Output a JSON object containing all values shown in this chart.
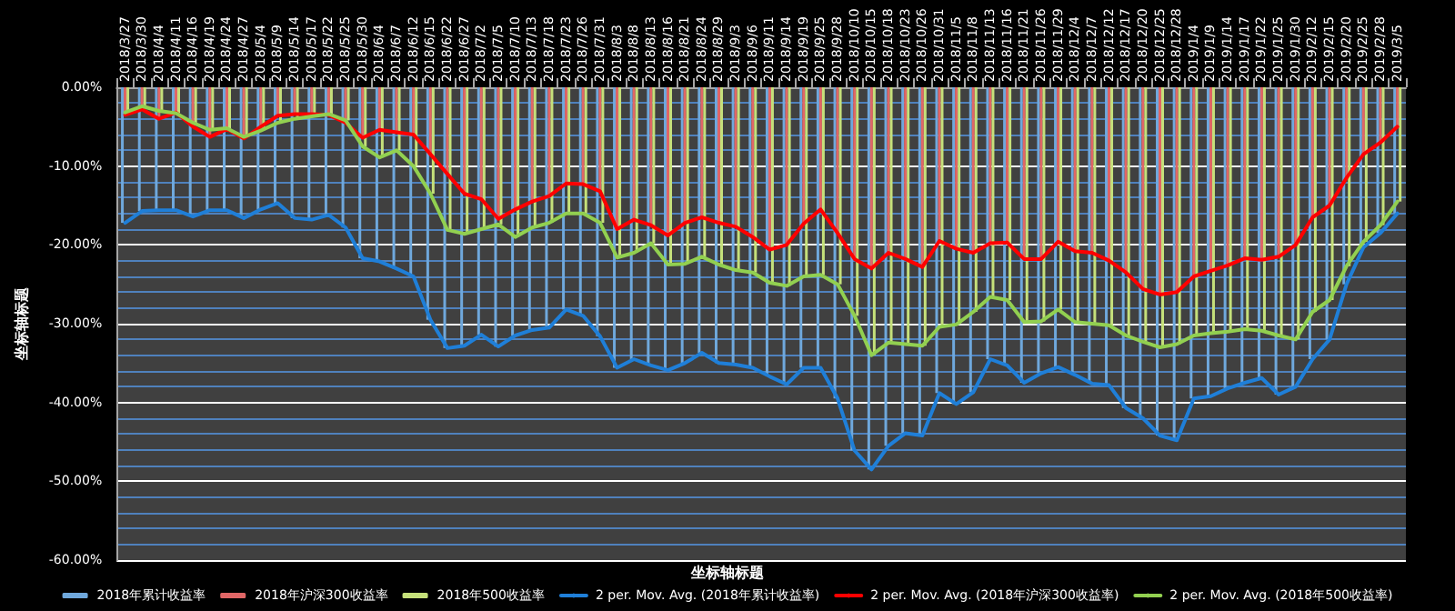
{
  "chart_data": {
    "type": "line",
    "xlabel": "坐标轴标题",
    "ylabel": "坐标轴标题",
    "categories": [
      "2018/3/27",
      "2018/3/30",
      "2018/4/4",
      "2018/4/11",
      "2018/4/16",
      "2018/4/19",
      "2018/4/24",
      "2018/4/27",
      "2018/5/4",
      "2018/5/9",
      "2018/5/14",
      "2018/5/17",
      "2018/5/22",
      "2018/5/25",
      "2018/5/30",
      "2018/6/4",
      "2018/6/7",
      "2018/6/12",
      "2018/6/15",
      "2018/6/22",
      "2018/6/27",
      "2018/7/2",
      "2018/7/5",
      "2018/7/10",
      "2018/7/13",
      "2018/7/18",
      "2018/7/23",
      "2018/7/26",
      "2018/7/31",
      "2018/8/3",
      "2018/8/8",
      "2018/8/13",
      "2018/8/16",
      "2018/8/21",
      "2018/8/24",
      "2018/8/29",
      "2018/9/3",
      "2018/9/6",
      "2018/9/11",
      "2018/9/14",
      "2018/9/19",
      "2018/9/25",
      "2018/9/28",
      "2018/10/10",
      "2018/10/15",
      "2018/10/18",
      "2018/10/23",
      "2018/10/26",
      "2018/10/31",
      "2018/11/5",
      "2018/11/8",
      "2018/11/13",
      "2018/11/16",
      "2018/11/21",
      "2018/11/26",
      "2018/11/29",
      "2018/12/4",
      "2018/12/7",
      "2018/12/12",
      "2018/12/17",
      "2018/12/20",
      "2018/12/25",
      "2018/12/28",
      "2019/1/4",
      "2019/1/9",
      "2019/1/14",
      "2019/1/17",
      "2019/1/22",
      "2019/1/25",
      "2019/1/30",
      "2019/2/12",
      "2019/2/15",
      "2019/2/20",
      "2019/2/25",
      "2019/2/28",
      "2019/3/5"
    ],
    "series": [
      {
        "name": "2018年累计收益率",
        "type": "bar",
        "color": "#6fa8dc",
        "values": [
          -17.2,
          -15.7,
          -15.6,
          -15.6,
          -16.4,
          -15.6,
          -15.6,
          -16.6,
          -15.5,
          -14.7,
          -16.6,
          -16.8,
          -16.2,
          -17.8,
          -21.7,
          -22.1,
          -23,
          -24,
          -29.5,
          -33.1,
          -32.8,
          -31.4,
          -32.9,
          -31.5,
          -30.8,
          -30.5,
          -28.2,
          -29,
          -31.6,
          -35.6,
          -34.5,
          -35.3,
          -35.9,
          -35,
          -33.7,
          -35,
          -35.2,
          -35.6,
          -36.7,
          -37.7,
          -35.6,
          -35.6,
          -39.5,
          -46.1,
          -48.5,
          -45.5,
          -43.9,
          -44.2,
          -38.8,
          -40.2,
          -38.7,
          -34.5,
          -35.3,
          -37.5,
          -36.3,
          -35.5,
          -36.5,
          -37.6,
          -37.8,
          -40.7,
          -42,
          -44.2,
          -44.8,
          -39.5,
          -39.2,
          -38.2,
          -37.5,
          -36.9,
          -39,
          -38,
          -34.5,
          -32,
          -25,
          -20.3,
          -18.5,
          -16
        ]
      },
      {
        "name": "2018年沪深300收益率",
        "type": "bar",
        "color": "#e06666",
        "values": [
          -3.5,
          -2.8,
          -4,
          -3.2,
          -5,
          -6.3,
          -5.3,
          -6.5,
          -5,
          -3.6,
          -3.4,
          -3.4,
          -3.5,
          -4.5,
          -6.4,
          -5.4,
          -5.7,
          -6,
          -8.5,
          -11,
          -13.5,
          -14.2,
          -16.7,
          -15.5,
          -14.5,
          -13.8,
          -12.2,
          -12.3,
          -13.2,
          -18,
          -16.8,
          -17.5,
          -18.8,
          -17.2,
          -16.5,
          -17.2,
          -17.7,
          -19,
          -20.6,
          -20,
          -17.3,
          -15.5,
          -18.5,
          -21.8,
          -23,
          -21,
          -21.8,
          -22.8,
          -19.5,
          -20.5,
          -21,
          -19.8,
          -19.7,
          -21.8,
          -21.8,
          -19.6,
          -20.8,
          -21,
          -22,
          -23.5,
          -25.6,
          -26.3,
          -26,
          -24,
          -23.3,
          -22.6,
          -21.7,
          -21.9,
          -21.5,
          -20,
          -16.5,
          -15,
          -11.5,
          -8.5,
          -7,
          -5
        ]
      },
      {
        "name": "2018年500收益率",
        "type": "bar",
        "color": "#c5e07a",
        "values": [
          -3.2,
          -2.4,
          -3,
          -3.3,
          -4.5,
          -5.4,
          -5.2,
          -6.3,
          -5.5,
          -4.5,
          -4,
          -3.7,
          -3.4,
          -4.2,
          -7.5,
          -8.9,
          -8,
          -10,
          -13.5,
          -18.1,
          -18.6,
          -18,
          -17.4,
          -19,
          -17.8,
          -17.2,
          -16,
          -16,
          -17.2,
          -21.6,
          -21,
          -19.8,
          -22.5,
          -22.4,
          -21.5,
          -22.5,
          -23.2,
          -23.5,
          -24.8,
          -25.2,
          -24,
          -23.8,
          -25,
          -29,
          -34,
          -32.4,
          -32.6,
          -32.8,
          -30.4,
          -30.1,
          -28.5,
          -26.6,
          -27,
          -29.8,
          -29.7,
          -28.2,
          -29.8,
          -30,
          -30.2,
          -31.5,
          -32.3,
          -33,
          -32.6,
          -31.5,
          -31.2,
          -31,
          -30.7,
          -30.9,
          -31.5,
          -32,
          -28.5,
          -27,
          -22.7,
          -19.6,
          -17.5,
          -14.5
        ]
      },
      {
        "name": "2 per. Mov. Avg. (2018年累计收益率)",
        "color": "#1f7fd8",
        "values": [
          -17.2,
          -15.7,
          -15.6,
          -15.6,
          -16.4,
          -15.6,
          -15.6,
          -16.6,
          -15.5,
          -14.7,
          -16.6,
          -16.8,
          -16.2,
          -17.8,
          -21.7,
          -22.1,
          -23,
          -24,
          -29.5,
          -33.1,
          -32.8,
          -31.4,
          -32.9,
          -31.5,
          -30.8,
          -30.5,
          -28.2,
          -29,
          -31.6,
          -35.6,
          -34.5,
          -35.3,
          -35.9,
          -35,
          -33.7,
          -35,
          -35.2,
          -35.6,
          -36.7,
          -37.7,
          -35.6,
          -35.6,
          -39.5,
          -46.1,
          -48.5,
          -45.5,
          -43.9,
          -44.2,
          -38.8,
          -40.2,
          -38.7,
          -34.5,
          -35.3,
          -37.5,
          -36.3,
          -35.5,
          -36.5,
          -37.6,
          -37.8,
          -40.7,
          -42,
          -44.2,
          -44.8,
          -39.5,
          -39.2,
          -38.2,
          -37.5,
          -36.9,
          -39,
          -38,
          -34.5,
          -32,
          -25,
          -20.3,
          -18.5,
          -16
        ]
      },
      {
        "name": "2 per. Mov. Avg. (2018年沪深300收益率)",
        "color": "#ff0000",
        "values": [
          -3.5,
          -2.8,
          -4,
          -3.2,
          -5,
          -6.3,
          -5.3,
          -6.5,
          -5,
          -3.6,
          -3.4,
          -3.4,
          -3.5,
          -4.5,
          -6.4,
          -5.4,
          -5.7,
          -6,
          -8.5,
          -11,
          -13.5,
          -14.2,
          -16.7,
          -15.5,
          -14.5,
          -13.8,
          -12.2,
          -12.3,
          -13.2,
          -18,
          -16.8,
          -17.5,
          -18.8,
          -17.2,
          -16.5,
          -17.2,
          -17.7,
          -19,
          -20.6,
          -20,
          -17.3,
          -15.5,
          -18.5,
          -21.8,
          -23,
          -21,
          -21.8,
          -22.8,
          -19.5,
          -20.5,
          -21,
          -19.8,
          -19.7,
          -21.8,
          -21.8,
          -19.6,
          -20.8,
          -21,
          -22,
          -23.5,
          -25.6,
          -26.3,
          -26,
          -24,
          -23.3,
          -22.6,
          -21.7,
          -21.9,
          -21.5,
          -20,
          -16.5,
          -15,
          -11.5,
          -8.5,
          -7,
          -5
        ]
      },
      {
        "name": "2 per. Mov. Avg. (2018年500收益率)",
        "color": "#92d050",
        "values": [
          -3.2,
          -2.4,
          -3,
          -3.3,
          -4.5,
          -5.4,
          -5.2,
          -6.3,
          -5.5,
          -4.5,
          -4,
          -3.7,
          -3.4,
          -4.2,
          -7.5,
          -8.9,
          -8,
          -10,
          -13.5,
          -18.1,
          -18.6,
          -18,
          -17.4,
          -19,
          -17.8,
          -17.2,
          -16,
          -16,
          -17.2,
          -21.6,
          -21,
          -19.8,
          -22.5,
          -22.4,
          -21.5,
          -22.5,
          -23.2,
          -23.5,
          -24.8,
          -25.2,
          -24,
          -23.8,
          -25,
          -29,
          -34,
          -32.4,
          -32.6,
          -32.8,
          -30.4,
          -30.1,
          -28.5,
          -26.6,
          -27,
          -29.8,
          -29.7,
          -28.2,
          -29.8,
          -30,
          -30.2,
          -31.5,
          -32.3,
          -33,
          -32.6,
          -31.5,
          -31.2,
          -31,
          -30.7,
          -30.9,
          -31.5,
          -32,
          -28.5,
          -27,
          -22.7,
          -19.6,
          -17.5,
          -14.5
        ]
      }
    ],
    "ylim": [
      -60,
      0
    ],
    "yticks": [
      {
        "value": -60,
        "label": "-60.00%"
      },
      {
        "value": -58,
        "label": null
      },
      {
        "value": -56,
        "label": null
      },
      {
        "value": -54,
        "label": null
      },
      {
        "value": -52,
        "label": null
      },
      {
        "value": -50,
        "label": "-50.00%"
      },
      {
        "value": -48,
        "label": null
      },
      {
        "value": -46,
        "label": null
      },
      {
        "value": -44,
        "label": null
      },
      {
        "value": -42,
        "label": null
      },
      {
        "value": -40,
        "label": "-40.00%"
      },
      {
        "value": -38,
        "label": null
      },
      {
        "value": -36,
        "label": null
      },
      {
        "value": -34,
        "label": null
      },
      {
        "value": -32,
        "label": null
      },
      {
        "value": -30,
        "label": "-30.00%"
      },
      {
        "value": -28,
        "label": null
      },
      {
        "value": -26,
        "label": null
      },
      {
        "value": -24,
        "label": null
      },
      {
        "value": -22,
        "label": null
      },
      {
        "value": -20,
        "label": "-20.00%"
      },
      {
        "value": -18,
        "label": null
      },
      {
        "value": -16,
        "label": null
      },
      {
        "value": -14,
        "label": null
      },
      {
        "value": -12,
        "label": null
      },
      {
        "value": -10,
        "label": "-10.00%"
      },
      {
        "value": -8,
        "label": null
      },
      {
        "value": -6,
        "label": null
      },
      {
        "value": -4,
        "label": null
      },
      {
        "value": -2,
        "label": null
      },
      {
        "value": 0,
        "label": "0.00%"
      }
    ],
    "grid": "y",
    "legend": "bottom",
    "marker": "none"
  }
}
